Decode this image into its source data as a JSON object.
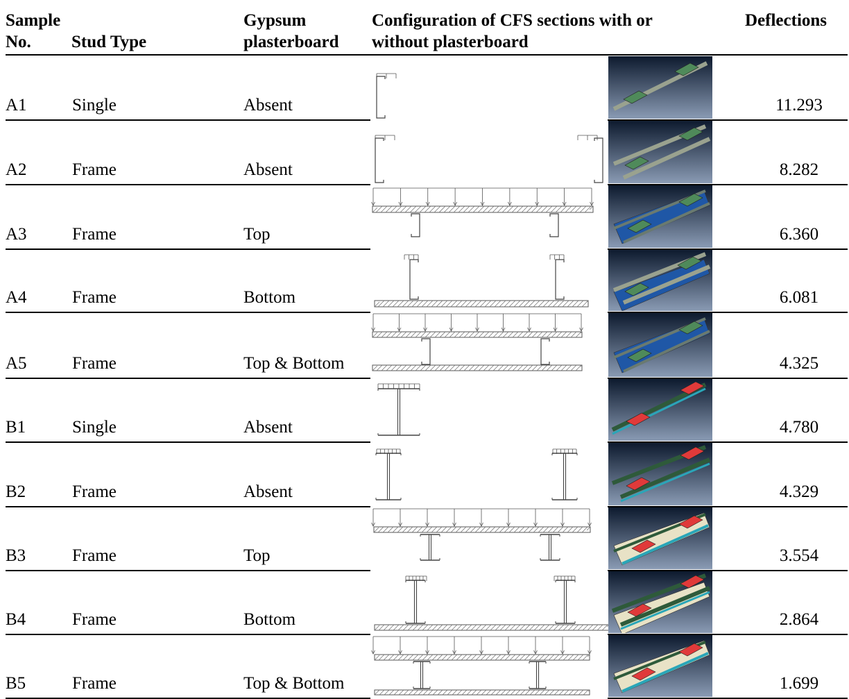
{
  "headers": {
    "sample_line1": "Sample",
    "sample_line2": "No.",
    "stud_type": "Stud Type",
    "gypsum_line1": "Gypsum",
    "gypsum_line2": "plasterboard",
    "config_line1": "Configuration of CFS sections with or",
    "config_line2": "without plasterboard",
    "deflections": "Deflections"
  },
  "rows": [
    {
      "sample": "A1",
      "stud": "Single",
      "gypsum": "Absent",
      "deflection": "11.293",
      "section": "C",
      "board": "none",
      "studs": "single",
      "thumb": "green_frame_single"
    },
    {
      "sample": "A2",
      "stud": "Frame",
      "gypsum": "Absent",
      "deflection": "8.282",
      "section": "C",
      "board": "none",
      "studs": "frame",
      "thumb": "green_frame"
    },
    {
      "sample": "A3",
      "stud": "Frame",
      "gypsum": "Top",
      "deflection": "6.360",
      "section": "C",
      "board": "top",
      "studs": "frame",
      "thumb": "blue_board"
    },
    {
      "sample": "A4",
      "stud": "Frame",
      "gypsum": "Bottom",
      "deflection": "6.081",
      "section": "C",
      "board": "bottom",
      "studs": "frame",
      "thumb": "green_on_blue"
    },
    {
      "sample": "A5",
      "stud": "Frame",
      "gypsum": "Top & Bottom",
      "deflection": "4.325",
      "section": "C",
      "board": "both",
      "studs": "frame",
      "thumb": "blue_board"
    },
    {
      "sample": "B1",
      "stud": "Single",
      "gypsum": "Absent",
      "deflection": "4.780",
      "section": "I",
      "board": "none",
      "studs": "single",
      "thumb": "red_single"
    },
    {
      "sample": "B2",
      "stud": "Frame",
      "gypsum": "Absent",
      "deflection": "4.329",
      "section": "I",
      "board": "none",
      "studs": "frame",
      "thumb": "red_frame"
    },
    {
      "sample": "B3",
      "stud": "Frame",
      "gypsum": "Top",
      "deflection": "3.554",
      "section": "I",
      "board": "top",
      "studs": "frame",
      "thumb": "cream_board"
    },
    {
      "sample": "B4",
      "stud": "Frame",
      "gypsum": "Bottom",
      "deflection": "2.864",
      "section": "I",
      "board": "bottom",
      "studs": "frame",
      "thumb": "cream_under"
    },
    {
      "sample": "B5",
      "stud": "Frame",
      "gypsum": "Top & Bottom",
      "deflection": "1.699",
      "section": "I",
      "board": "both",
      "studs": "frame",
      "thumb": "cream_board"
    }
  ],
  "colors": {
    "background_top": "#0d1a2e",
    "background_bottom": "#8a9bb4",
    "stud_grey": "#9aa28f",
    "plate_green": "#4f8a5a",
    "board_blue": "#1f57a6",
    "stud_dark_green": "#2e5a3a",
    "stud_cyan": "#2aa6b8",
    "plate_red": "#e03a3a",
    "board_cream": "#e8e2c6"
  }
}
